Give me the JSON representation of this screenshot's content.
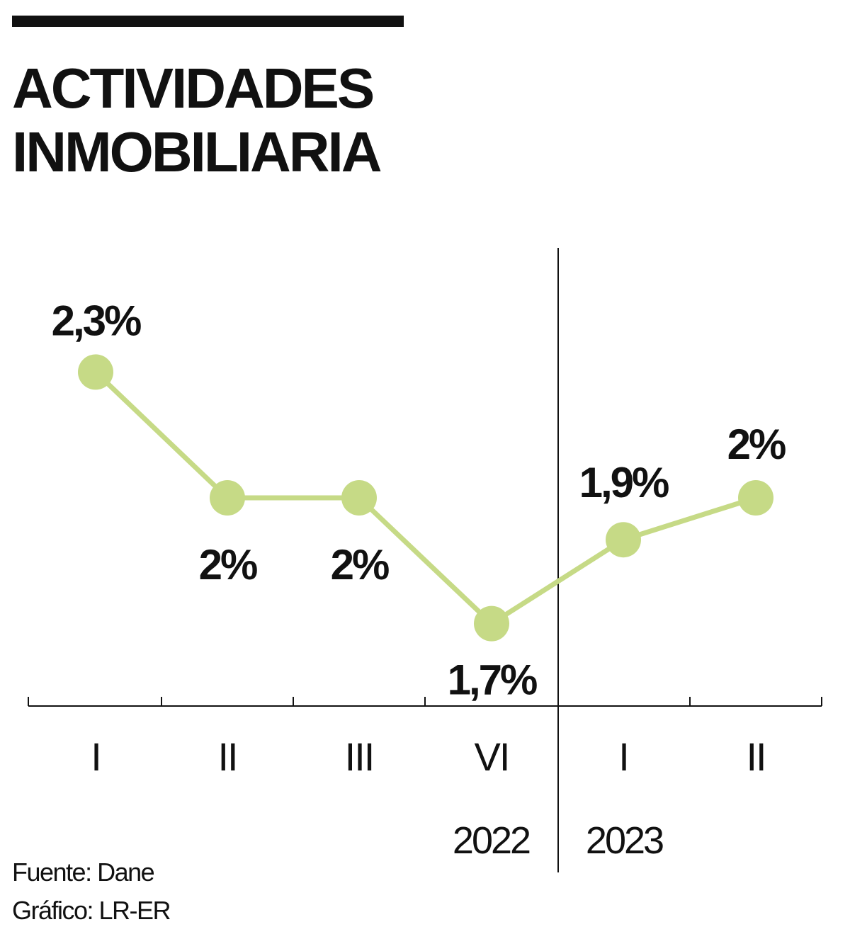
{
  "chart_data": {
    "type": "line",
    "title": [
      "ACTIVIDADES",
      "INMOBILIARIA"
    ],
    "categories": [
      "I",
      "II",
      "III",
      "VI",
      "I",
      "II"
    ],
    "years": [
      {
        "label": "2022"
      },
      {
        "label": "2023"
      }
    ],
    "series": [
      {
        "name": "Actividades inmobiliaria",
        "values": [
          2.3,
          2.0,
          2.0,
          1.7,
          1.9,
          2.0
        ]
      }
    ],
    "data_labels": [
      "2,3%",
      "2%",
      "2%",
      "1,7%",
      "1,9%",
      "2%"
    ],
    "xlabel": "",
    "ylabel": "",
    "ylim": [
      1.6,
      2.4
    ],
    "grid": false,
    "line_color": "#c6da86",
    "source": "Fuente: Dane",
    "credit": "Gráfico: LR-ER"
  }
}
